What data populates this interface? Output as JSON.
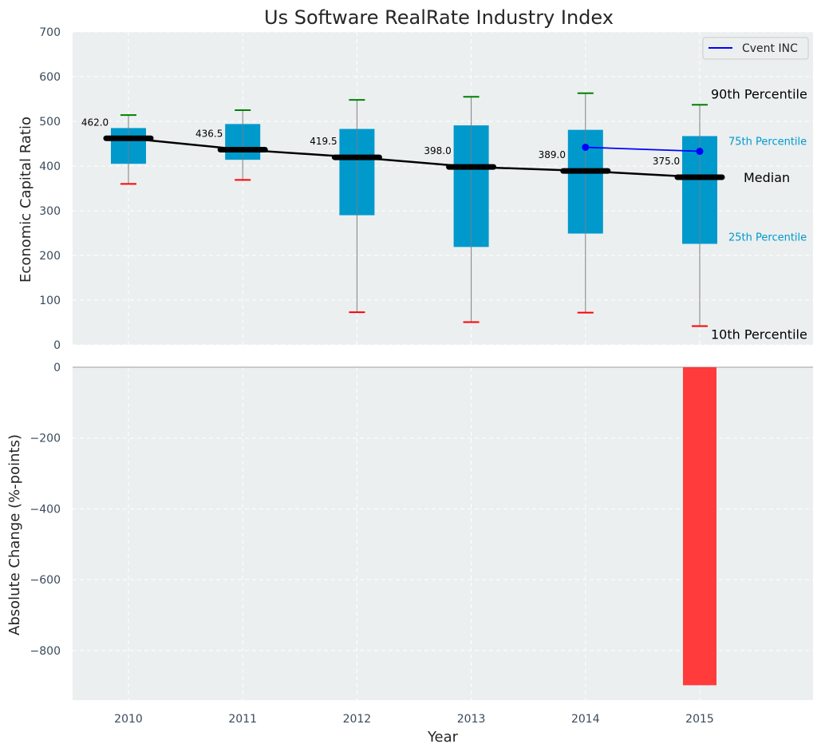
{
  "chart_data": {
    "title": "Us Software RealRate Industry Index",
    "xlabel": "Year",
    "categories": [
      "2010",
      "2011",
      "2012",
      "2013",
      "2014",
      "2015"
    ],
    "top_panel": {
      "type": "box",
      "ylabel": "Economic Capital Ratio",
      "ylim": [
        0,
        700
      ],
      "yticks": [
        0,
        100,
        200,
        300,
        400,
        500,
        600,
        700
      ],
      "grid": true,
      "boxes": [
        {
          "year": "2010",
          "p10": 360,
          "p25": 405,
          "median": 462.0,
          "p75": 485,
          "p90": 514
        },
        {
          "year": "2011",
          "p10": 369,
          "p25": 414,
          "median": 436.5,
          "p75": 494,
          "p90": 525
        },
        {
          "year": "2012",
          "p10": 73,
          "p25": 290,
          "median": 419.5,
          "p75": 483,
          "p90": 548
        },
        {
          "year": "2013",
          "p10": 51,
          "p25": 219,
          "median": 398.0,
          "p75": 491,
          "p90": 555
        },
        {
          "year": "2014",
          "p10": 72,
          "p25": 249,
          "median": 389.0,
          "p75": 481,
          "p90": 563
        },
        {
          "year": "2015",
          "p10": 42,
          "p25": 226,
          "median": 375.0,
          "p75": 467,
          "p90": 537
        }
      ],
      "median_labels": [
        "462.0",
        "436.5",
        "419.5",
        "398.0",
        "389.0",
        "375.0"
      ],
      "company_series": {
        "name": "Cvent INC",
        "x": [
          "2014",
          "2015"
        ],
        "values": [
          442,
          433
        ],
        "color": "#0000ff"
      },
      "annotations": {
        "p90": "90th Percentile",
        "p75": "75th Percentile",
        "median": "Median",
        "p25": "25th Percentile",
        "p10": "10th Percentile"
      },
      "legend": {
        "position": "top-right",
        "entries": [
          "Cvent INC"
        ]
      }
    },
    "bottom_panel": {
      "type": "bar",
      "ylabel": "Absolute Change (%-points)",
      "ylim": [
        -940,
        0
      ],
      "yticks": [
        0,
        -200,
        -400,
        -600,
        -800
      ],
      "bars": [
        {
          "year": "2015",
          "value": -898
        }
      ],
      "grid": true
    },
    "colors": {
      "box": "#0099cc",
      "median": "#000000",
      "whisker": "#808080",
      "cap_top": "#008000",
      "cap_bottom": "#ff0000",
      "bar": "#ff3b3b",
      "background": "#ebeff0"
    }
  }
}
